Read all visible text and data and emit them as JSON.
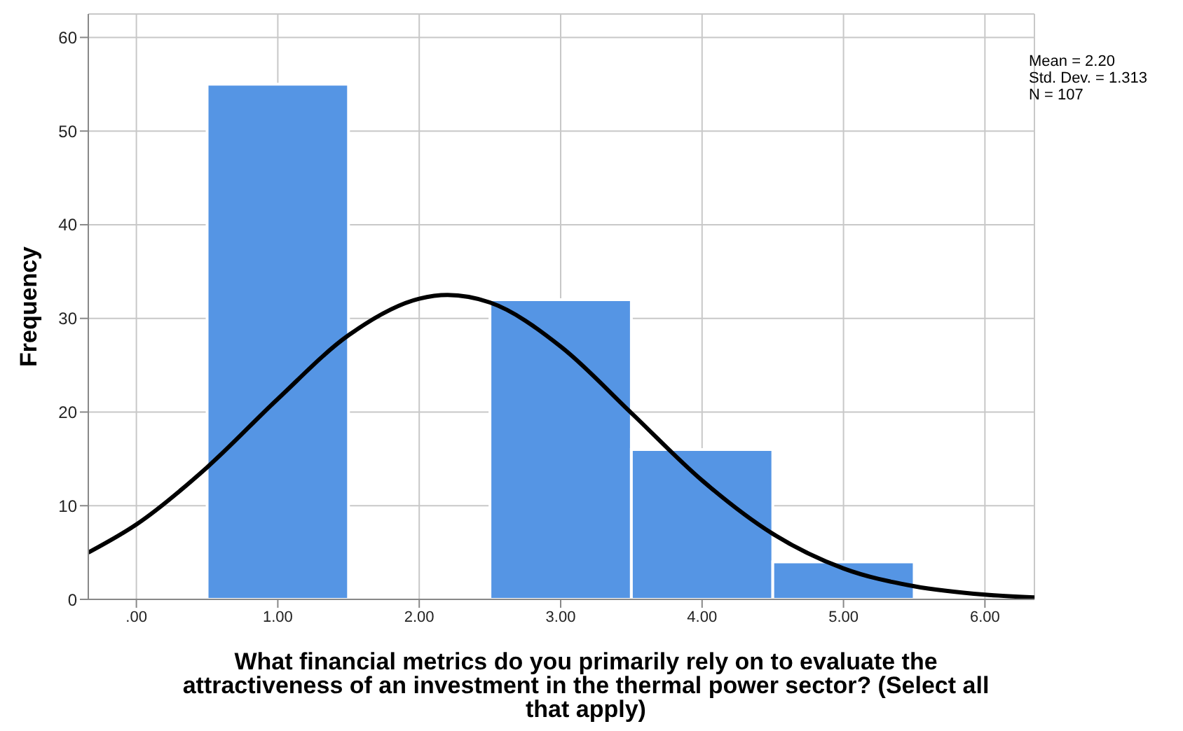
{
  "chart_data": {
    "type": "histogram",
    "xlabel": "What financial metrics do you primarily rely on to evaluate the attractiveness of an investment in the thermal power sector? (Select all that apply)",
    "ylabel": "Frequency",
    "bins": [
      0.5,
      1.5,
      2.5,
      3.5,
      4.5,
      5.5
    ],
    "values": [
      55,
      0,
      32,
      16,
      4
    ],
    "color": "#5595e4",
    "series": [
      {
        "type": "line",
        "color": "#000000",
        "x": [
          -0.34,
          0,
          0.5,
          1,
          1.5,
          2,
          2.2,
          2.5,
          3,
          3.5,
          4,
          4.5,
          5,
          5.5,
          6,
          6.35
        ],
        "values": [
          5,
          8,
          14.1,
          21.4,
          28.2,
          32.1,
          32.5,
          31.7,
          27,
          19.9,
          12.7,
          7,
          3.3,
          1.4,
          0.5,
          0.2
        ]
      }
    ],
    "xlim": [
      -0.34,
      6.35
    ],
    "xticks": [
      {
        "value": 0,
        "label": ".00"
      },
      {
        "value": 1,
        "label": "1.00"
      },
      {
        "value": 2,
        "label": "2.00"
      },
      {
        "value": 3,
        "label": "3.00"
      },
      {
        "value": 4,
        "label": "4.00"
      },
      {
        "value": 5,
        "label": "5.00"
      },
      {
        "value": 6,
        "label": "6.00"
      }
    ],
    "ylim": [
      0,
      62.5
    ],
    "yticks": [
      0,
      10,
      20,
      30,
      40,
      50,
      60
    ],
    "grid": true,
    "annotations": [
      "Mean = 2.20",
      "Std. Dev. = 1.313",
      "N = 107"
    ]
  }
}
